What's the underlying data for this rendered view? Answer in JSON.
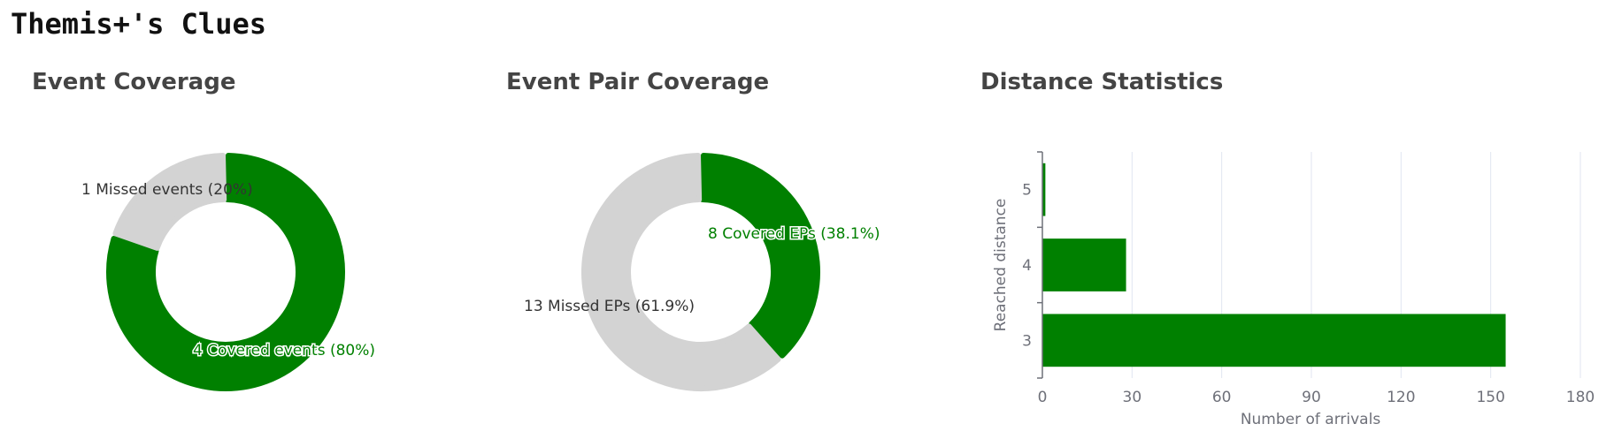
{
  "page": {
    "title": "Themis+'s Clues"
  },
  "colors": {
    "covered": "#008000",
    "missed": "#d3d3d3",
    "grid": "#e0e6f1",
    "axis": "#6e7079"
  },
  "chart_data": [
    {
      "type": "pie",
      "title": "Event Coverage",
      "slices": [
        {
          "label": "Covered events",
          "value": 4,
          "percent": "80%",
          "color": "#008000",
          "text": "4 Covered events (80%)"
        },
        {
          "label": "Missed events",
          "value": 1,
          "percent": "20%",
          "color": "#d3d3d3",
          "text": "1 Missed events (20%)"
        }
      ]
    },
    {
      "type": "pie",
      "title": "Event Pair Coverage",
      "slices": [
        {
          "label": "Covered EPs",
          "value": 8,
          "percent": "38.1%",
          "color": "#008000",
          "text": "8 Covered EPs (38.1%)"
        },
        {
          "label": "Missed EPs",
          "value": 13,
          "percent": "61.9%",
          "color": "#d3d3d3",
          "text": "13 Missed EPs (61.9%)"
        }
      ]
    },
    {
      "type": "bar",
      "orientation": "horizontal",
      "title": "Distance Statistics",
      "categories": [
        "3",
        "4",
        "5"
      ],
      "values": [
        155,
        28,
        1
      ],
      "xlabel": "Number of arrivals",
      "ylabel": "Reached distance",
      "xlim": [
        0,
        180
      ],
      "xticks": [
        "0",
        "30",
        "60",
        "90",
        "120",
        "150",
        "180"
      ],
      "grid": true,
      "color": "#008000"
    }
  ]
}
